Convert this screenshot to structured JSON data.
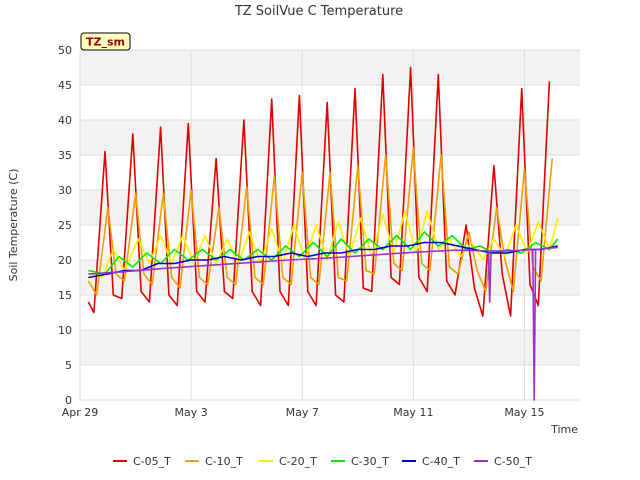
{
  "chart_data": {
    "type": "line",
    "title": "TZ SoilVue C Temperature",
    "xlabel": "Time",
    "ylabel": "Soil Temperature (C)",
    "site_badge": "TZ_sm",
    "ylim": [
      0,
      50
    ],
    "yticks": [
      0,
      5,
      10,
      15,
      20,
      25,
      30,
      35,
      40,
      45,
      50
    ],
    "x_range_days": [
      0,
      18
    ],
    "xticks": [
      {
        "day": 0,
        "label": "Apr 29"
      },
      {
        "day": 4,
        "label": "May 3"
      },
      {
        "day": 8,
        "label": "May 7"
      },
      {
        "day": 12,
        "label": "May 11"
      },
      {
        "day": 16,
        "label": "May 15"
      }
    ],
    "grid": true,
    "legend_position": "bottom",
    "series": [
      {
        "name": "C-05_T",
        "color": "#e00000",
        "x": [
          0.3,
          0.5,
          0.9,
          1.2,
          1.5,
          1.9,
          2.2,
          2.5,
          2.9,
          3.2,
          3.5,
          3.9,
          4.2,
          4.5,
          4.9,
          5.2,
          5.5,
          5.9,
          6.2,
          6.5,
          6.9,
          7.2,
          7.5,
          7.9,
          8.2,
          8.5,
          8.9,
          9.2,
          9.5,
          9.9,
          10.2,
          10.5,
          10.9,
          11.2,
          11.5,
          11.9,
          12.2,
          12.5,
          12.9,
          13.2,
          13.5,
          13.9,
          14.2,
          14.5,
          14.9,
          15.2,
          15.5,
          15.9,
          16.2,
          16.5,
          16.9
        ],
        "y": [
          14,
          12.5,
          35.5,
          15,
          14.5,
          38,
          15.5,
          14,
          39,
          15,
          13.5,
          39.5,
          15.5,
          14,
          34.5,
          15.5,
          14.5,
          40,
          15.5,
          13.5,
          43,
          15.5,
          13.5,
          43.5,
          15.5,
          13.5,
          42.5,
          15,
          14,
          44.5,
          16,
          15.5,
          46.5,
          17.5,
          16.5,
          47.5,
          17.5,
          15.5,
          46.5,
          17,
          15,
          25,
          16,
          12,
          33.5,
          18,
          12,
          44.5,
          16.5,
          13.5,
          45.5
        ]
      },
      {
        "name": "C-10_T",
        "color": "#f0a000",
        "x": [
          0.3,
          0.6,
          1.0,
          1.3,
          1.6,
          2.0,
          2.3,
          2.6,
          3.0,
          3.3,
          3.6,
          4.0,
          4.3,
          4.6,
          5.0,
          5.3,
          5.6,
          6.0,
          6.3,
          6.6,
          7.0,
          7.3,
          7.6,
          8.0,
          8.3,
          8.6,
          9.0,
          9.3,
          9.6,
          10.0,
          10.3,
          10.6,
          11.0,
          11.3,
          11.6,
          12.0,
          12.3,
          12.6,
          13.0,
          13.3,
          13.6,
          14.0,
          14.3,
          14.6,
          15.0,
          15.3,
          15.6,
          16.0,
          16.3,
          16.6,
          17.0
        ],
        "y": [
          17,
          15,
          27.5,
          18,
          17,
          29.5,
          18,
          16.5,
          29.5,
          17.5,
          16,
          30,
          17.5,
          16.5,
          27.5,
          17.5,
          16.5,
          30.5,
          17.5,
          16.5,
          32,
          17.5,
          16.5,
          32.5,
          17.5,
          16.5,
          32.5,
          17.5,
          17,
          33.5,
          18.5,
          18,
          35,
          19.5,
          18.5,
          36,
          19.5,
          18.5,
          35,
          19,
          18,
          24,
          18.5,
          15.5,
          27.5,
          20,
          15.5,
          33,
          19,
          17,
          34.5
        ]
      },
      {
        "name": "C-20_T",
        "color": "#ffee00",
        "x": [
          0.3,
          0.8,
          1.2,
          1.6,
          2.1,
          2.5,
          2.9,
          3.3,
          3.7,
          4.1,
          4.5,
          4.9,
          5.3,
          5.7,
          6.1,
          6.5,
          6.9,
          7.3,
          7.7,
          8.1,
          8.5,
          8.9,
          9.3,
          9.7,
          10.1,
          10.5,
          10.9,
          11.3,
          11.7,
          12.1,
          12.5,
          12.9,
          13.3,
          13.7,
          14.1,
          14.5,
          14.9,
          15.3,
          15.7,
          16.1,
          16.5,
          16.9,
          17.2
        ],
        "y": [
          18,
          17.5,
          21.5,
          18.5,
          23,
          19.5,
          23.5,
          19.5,
          23.5,
          19.5,
          23.5,
          19.5,
          23,
          19.5,
          24,
          19.5,
          24.5,
          19.5,
          25,
          20,
          25,
          20,
          25.5,
          20.5,
          26,
          20.5,
          26.5,
          21,
          27,
          21,
          27,
          21.5,
          23,
          20.5,
          22.5,
          20,
          23,
          20.5,
          25,
          21,
          25.5,
          21.5,
          26
        ]
      },
      {
        "name": "C-30_T",
        "color": "#00ee00",
        "x": [
          0.3,
          0.9,
          1.4,
          1.9,
          2.4,
          2.9,
          3.4,
          3.9,
          4.4,
          4.9,
          5.4,
          5.9,
          6.4,
          6.9,
          7.4,
          7.9,
          8.4,
          8.9,
          9.4,
          9.9,
          10.4,
          10.9,
          11.4,
          11.9,
          12.4,
          12.9,
          13.4,
          13.9,
          14.4,
          14.9,
          15.4,
          15.9,
          16.4,
          16.9,
          17.2
        ],
        "y": [
          18.5,
          18,
          20.5,
          19,
          21,
          19.5,
          21.5,
          20,
          21.5,
          20,
          21.5,
          20,
          21.5,
          20,
          22,
          20.5,
          22.5,
          20.5,
          23,
          21,
          23,
          21.5,
          23.5,
          21.5,
          24,
          22,
          23.5,
          21.5,
          22,
          21,
          21.5,
          21,
          22.5,
          21.5,
          23
        ]
      },
      {
        "name": "C-40_T",
        "color": "#0000cc",
        "x": [
          0.3,
          1.0,
          1.6,
          2.2,
          2.8,
          3.4,
          4.0,
          4.6,
          5.2,
          5.8,
          6.4,
          7.0,
          7.6,
          8.2,
          8.8,
          9.4,
          10.0,
          10.6,
          11.2,
          11.8,
          12.4,
          13.0,
          13.6,
          14.2,
          14.8,
          15.4,
          16.0,
          16.6,
          17.2
        ],
        "y": [
          17.5,
          18,
          18.5,
          18.5,
          19.5,
          19.5,
          20,
          20,
          20.5,
          20,
          20.5,
          20.5,
          21,
          20.5,
          21,
          21,
          21.5,
          21.5,
          22,
          22,
          22.5,
          22.5,
          22,
          21.5,
          21,
          21,
          21.5,
          21.5,
          22
        ]
      },
      {
        "name": "C-50_T",
        "color": "#9933cc",
        "x": [
          0.3,
          1.5,
          3.0,
          4.5,
          6.0,
          7.5,
          9.0,
          10.5,
          12.0,
          13.5,
          14.7,
          14.75,
          14.8,
          15.5,
          16.3,
          16.35,
          16.4,
          17.2
        ],
        "y": [
          18,
          18.3,
          18.8,
          19.2,
          19.6,
          20,
          20.3,
          20.7,
          21.1,
          21.4,
          21.3,
          14,
          21.3,
          21.3,
          21.5,
          0,
          21.5,
          21.8
        ]
      }
    ]
  }
}
